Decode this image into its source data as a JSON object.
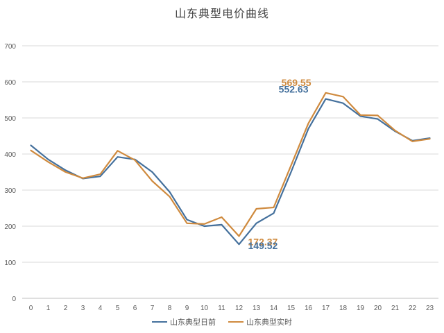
{
  "chart_data": {
    "type": "line",
    "title": "山东典型电价曲线",
    "xlabel": "",
    "ylabel": "",
    "categories": [
      "0",
      "1",
      "2",
      "3",
      "4",
      "5",
      "6",
      "7",
      "8",
      "9",
      "10",
      "11",
      "12",
      "13",
      "14",
      "15",
      "16",
      "17",
      "18",
      "19",
      "20",
      "21",
      "22",
      "23"
    ],
    "ylim": [
      0,
      700
    ],
    "yticks": [
      "0",
      "100",
      "200",
      "300",
      "400",
      "500",
      "600",
      "700"
    ],
    "grid": true,
    "legend_position": "bottom",
    "series": [
      {
        "name": "山东典型日前",
        "color": "#44709c",
        "values": [
          424,
          385,
          355,
          332,
          338,
          392,
          385,
          350,
          295,
          218,
          200,
          204,
          149.52,
          208,
          236,
          350,
          470,
          552.63,
          541,
          505,
          497,
          463,
          437,
          444
        ]
      },
      {
        "name": "山东典型实时",
        "color": "#cf8a3e",
        "values": [
          410,
          378,
          350,
          333,
          344,
          409,
          383,
          325,
          282,
          208,
          206,
          225,
          172.37,
          248,
          252,
          368,
          485,
          569.55,
          559,
          508,
          507,
          465,
          435,
          442
        ]
      }
    ],
    "annotations": [
      {
        "text": "569.55",
        "series": 1,
        "index": 17,
        "color": "#cf8a3e"
      },
      {
        "text": "552.63",
        "series": 0,
        "index": 17,
        "color": "#44709c"
      },
      {
        "text": "172.37",
        "series": 1,
        "index": 12,
        "color": "#cf8a3e"
      },
      {
        "text": "149.52",
        "series": 0,
        "index": 12,
        "color": "#44709c"
      }
    ]
  }
}
